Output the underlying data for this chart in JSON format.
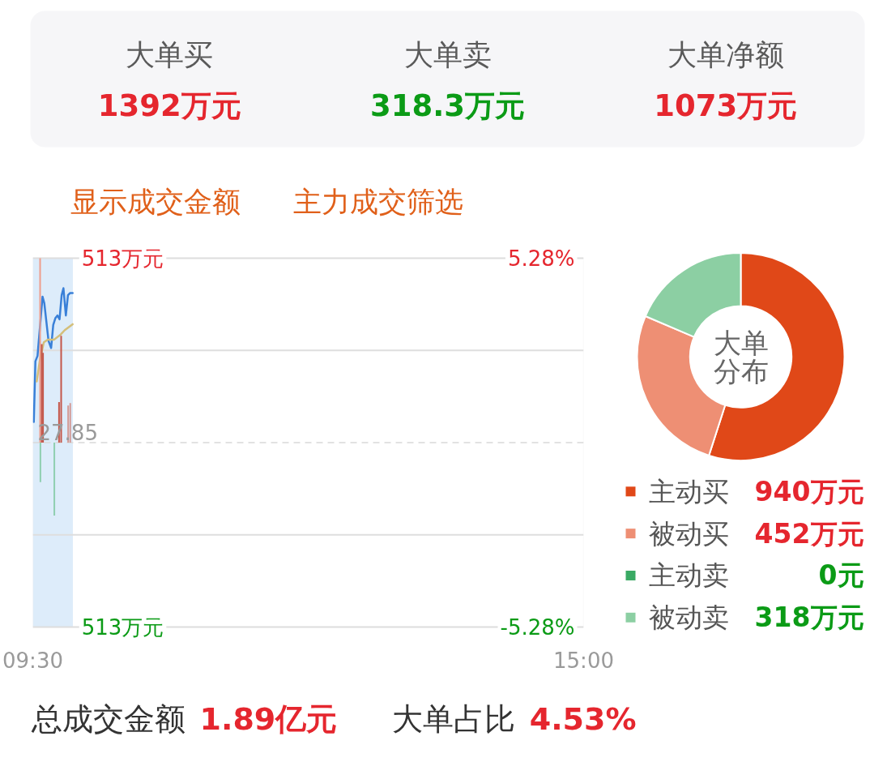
{
  "chart_data": [
    {
      "type": "other",
      "categories": [
        "大单买",
        "大单卖",
        "大单净额"
      ],
      "value_labels": [
        "1392万元",
        "318.3万元",
        "1073万元"
      ]
    },
    {
      "type": "other",
      "annotations": [
        "显示成交金额",
        "主力成交筛选"
      ]
    },
    {
      "type": "line",
      "xlim": [
        9.5,
        15
      ],
      "xticks": [
        {
          "value": 9.5,
          "label": "09:30"
        },
        {
          "value": 15,
          "label": "15:00"
        }
      ],
      "ylim": [
        -5.28,
        5.28
      ],
      "yticks": [
        {
          "value": 5.28,
          "label": "5.28%"
        },
        {
          "value": 2.64,
          "label": null
        },
        {
          "value": -2.64,
          "label": null
        },
        {
          "value": -5.28,
          "label": "-5.28%"
        }
      ],
      "y2lim": [
        -513,
        513
      ],
      "y2ticks": [
        {
          "value": 513,
          "label": "513万元"
        },
        {
          "value": -513,
          "label": "513万元"
        }
      ],
      "grid": "y",
      "ref_lines": [
        {
          "axis": "y",
          "value": 0,
          "line_style": "dashed",
          "color": "#d9d9d9"
        }
      ],
      "bands": [
        {
          "axis": "x",
          "from": 9.5,
          "to": 9.9,
          "color": "#ddecfa"
        }
      ],
      "annotations": [
        {
          "text": "27.85",
          "x": 9.5,
          "y": 0
        }
      ],
      "series": [
        {
          "type": "line",
          "color": "#3a80d8",
          "x": [
            9.51,
            9.526,
            9.547,
            9.597,
            9.615,
            9.657,
            9.683,
            9.704,
            9.725,
            9.746,
            9.767,
            9.788,
            9.806,
            9.83,
            9.851,
            9.871,
            9.898
          ],
          "values": [
            0.59,
            2.33,
            2.48,
            4.18,
            3.99,
            2.91,
            2.71,
            3.37,
            3.56,
            3.64,
            3.53,
            4.22,
            4.42,
            3.64,
            4.22,
            4.28,
            4.28
          ]
        },
        {
          "type": "line",
          "color": "#d4bf7a",
          "x": [
            9.539,
            9.571,
            9.61,
            9.649,
            9.714,
            9.78,
            9.819,
            9.898
          ],
          "values": [
            1.75,
            2.37,
            2.87,
            2.95,
            2.95,
            3.1,
            3.22,
            3.39
          ]
        },
        {
          "type": "bar",
          "axis": "y2",
          "colors": [
            "#ee9d8c",
            "#8fcfb0",
            "#c4574a",
            "#c4574a",
            "#8fcfb0",
            "#c4574a",
            "#c4574a",
            "#d49a95",
            "#d49a95"
          ],
          "x": [
            9.573,
            9.576,
            9.589,
            9.602,
            9.715,
            9.762,
            9.783,
            9.853,
            9.874
          ],
          "values": [
            513,
            -110,
            274,
            250,
            -203,
            113,
            297,
            103,
            110
          ]
        }
      ]
    },
    {
      "type": "donut",
      "title": "大单分布",
      "categories": [
        "主动买",
        "被动买",
        "主动卖",
        "被动卖"
      ],
      "values": [
        940,
        452,
        0,
        318
      ],
      "colors": [
        "#e04818",
        "#ee8f74",
        "#3aaa64",
        "#8ccfa3"
      ],
      "value_labels": [
        "940万元",
        "452万元",
        "0元",
        "318万元"
      ],
      "legend": "bottom"
    },
    {
      "type": "other",
      "categories": [
        "总成交金额",
        "大单占比"
      ],
      "value_labels": [
        "1.89亿元",
        "4.53%"
      ]
    }
  ]
}
